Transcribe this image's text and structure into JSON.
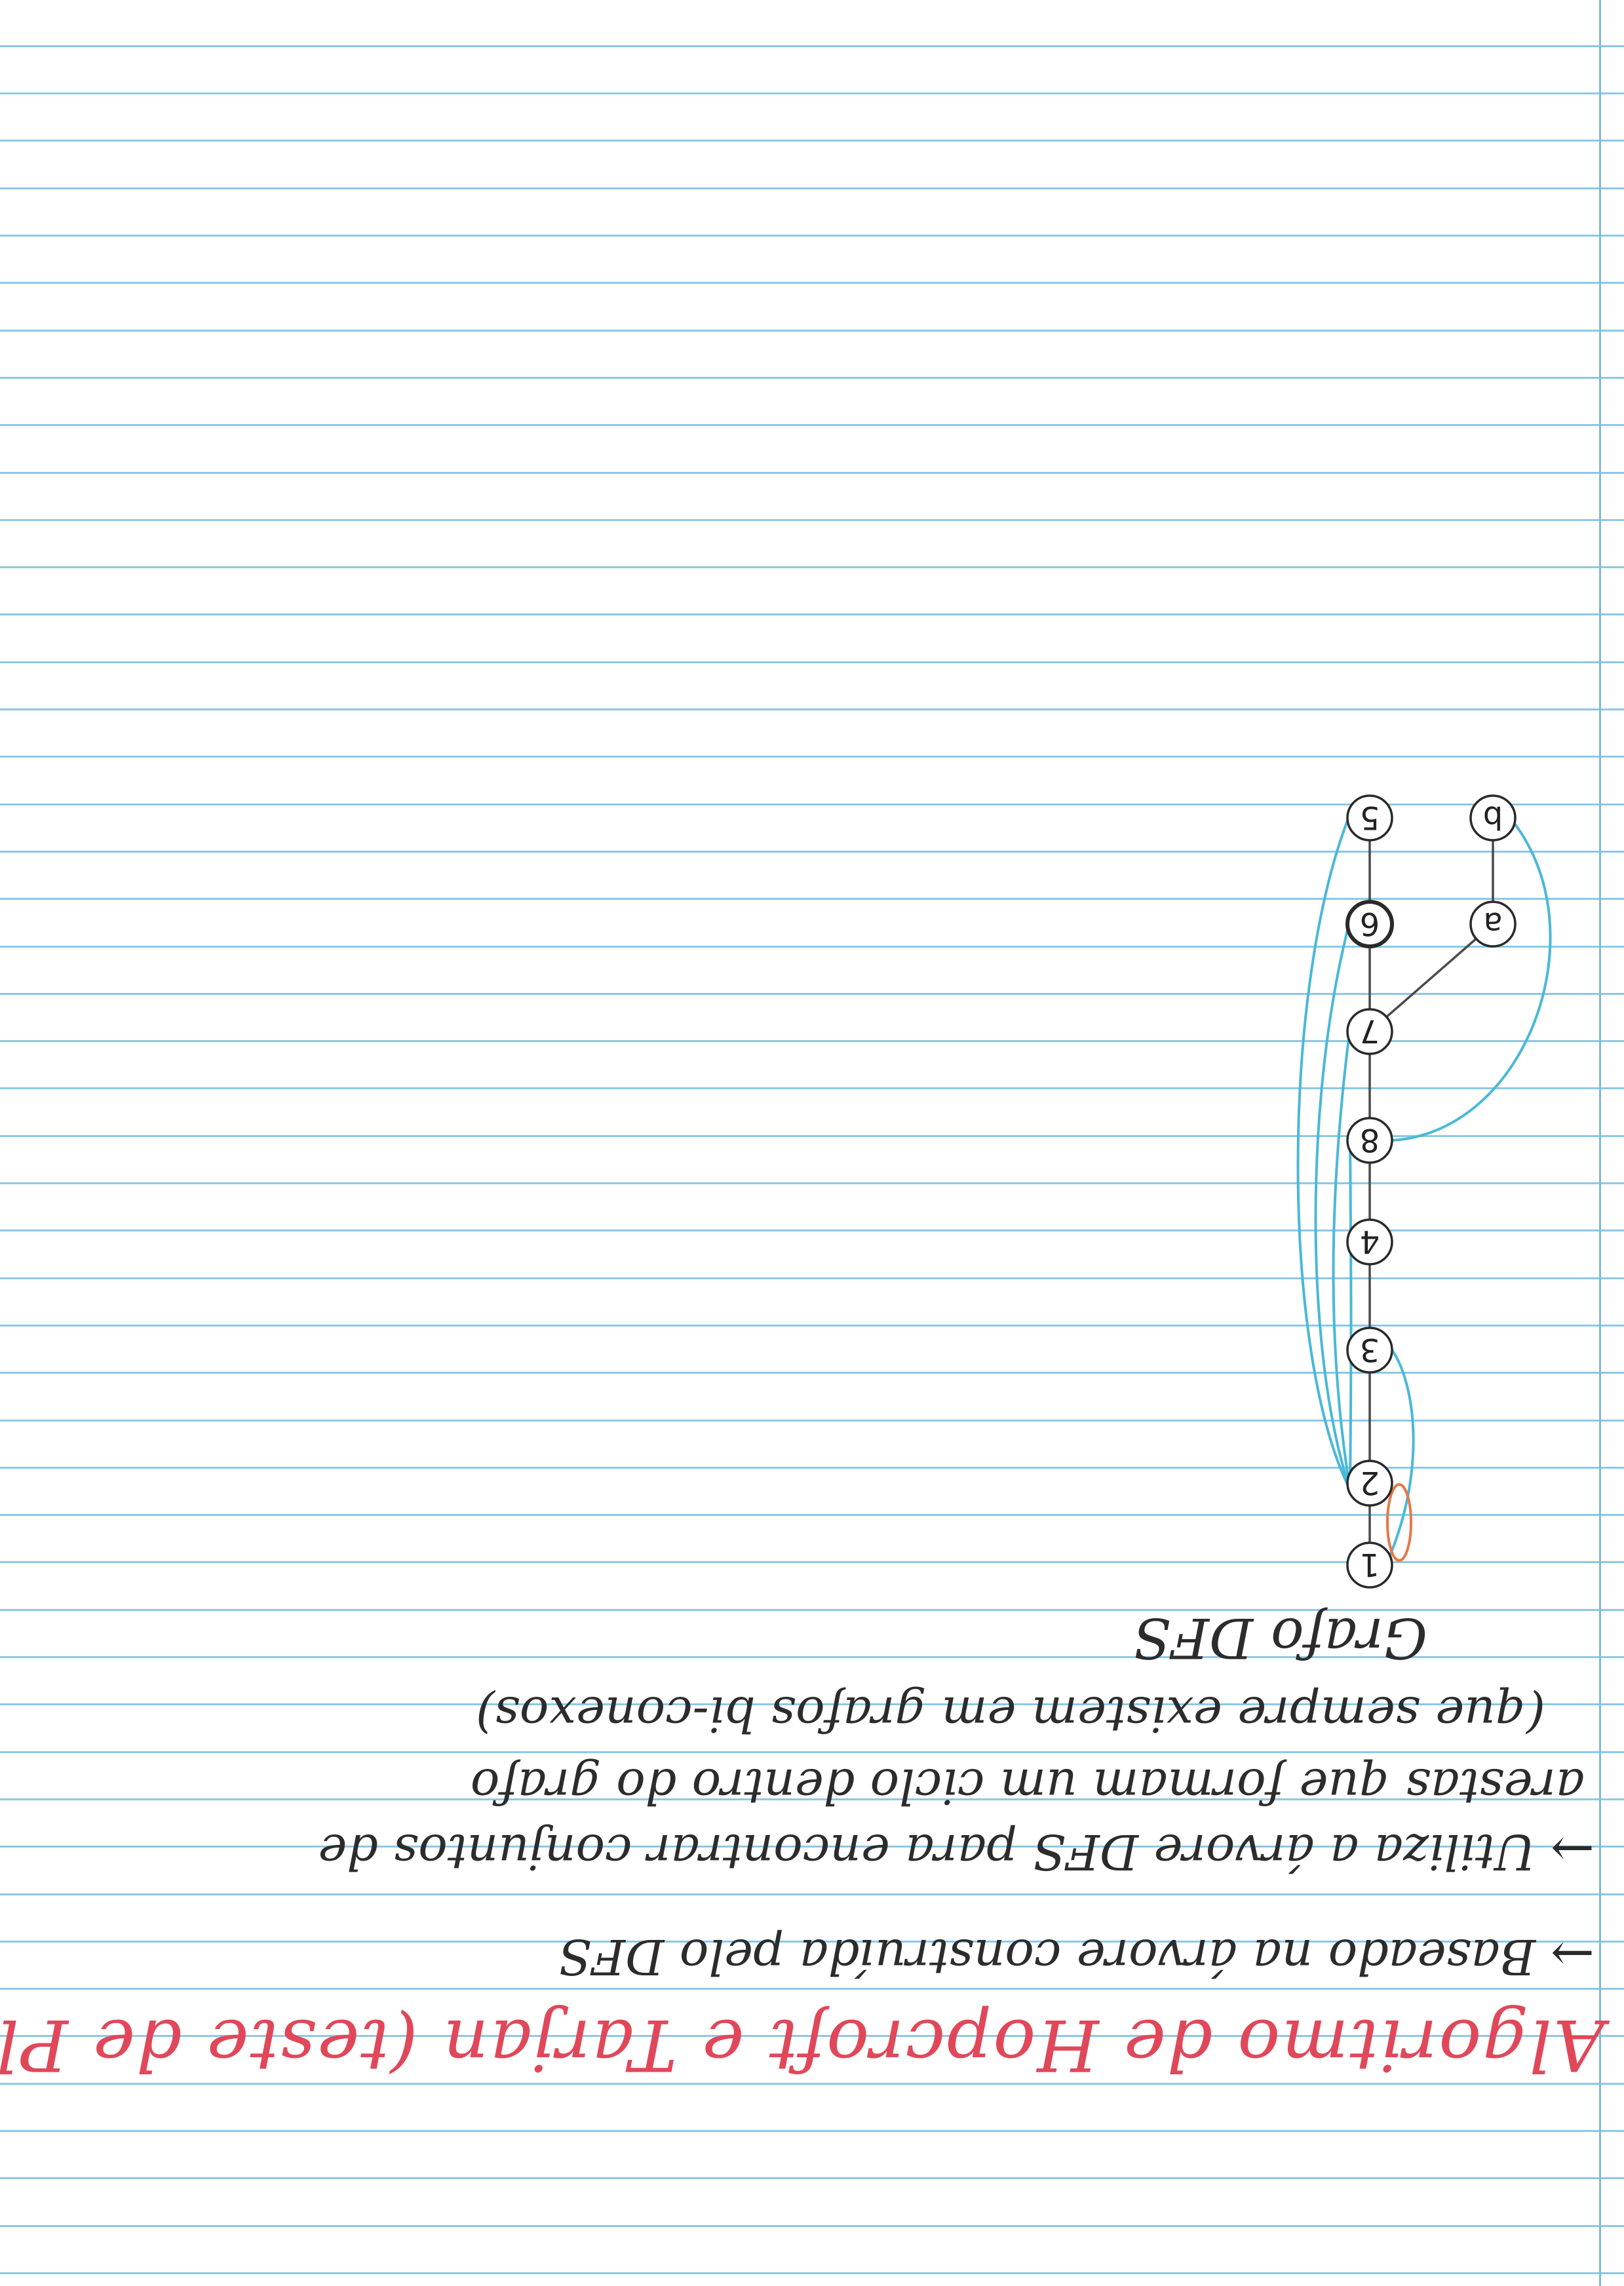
{
  "title": "Algoritmo de Hopcroft e Tarjan (teste de Planaridade)",
  "bullets": [
    {
      "marker": "→",
      "lines": [
        "Baseado na árvore construída pelo DFS"
      ]
    },
    {
      "marker": "→",
      "lines": [
        "Utiliza a árvore DFS para encontrar conjuntos de",
        "arestas que formam um ciclo dentro do grafo",
        "(que sempre existem em grafos bi-conexos)"
      ]
    }
  ],
  "diagram": {
    "caption": "Grafo DFS",
    "nodes": [
      "1",
      "2",
      "3",
      "4",
      "8",
      "7",
      "6",
      "5",
      "a",
      "b"
    ],
    "tree_edges": [
      [
        "1",
        "2"
      ],
      [
        "2",
        "3"
      ],
      [
        "3",
        "4"
      ],
      [
        "4",
        "8"
      ],
      [
        "8",
        "7"
      ],
      [
        "7",
        "6"
      ],
      [
        "6",
        "5"
      ],
      [
        "7",
        "a"
      ],
      [
        "a",
        "b"
      ]
    ],
    "back_edges": [
      [
        "1",
        "3"
      ],
      [
        "2",
        "5"
      ],
      [
        "2",
        "6"
      ],
      [
        "2",
        "7"
      ],
      [
        "2",
        "8"
      ],
      [
        "8",
        "b"
      ]
    ],
    "highlight": "2",
    "colors": {
      "tree_edge": "#4a4a4a",
      "back_edge": "#4ab8d8",
      "highlight": "#e6784a",
      "title": "#e0485a",
      "rule": "#8cc8e6"
    }
  }
}
